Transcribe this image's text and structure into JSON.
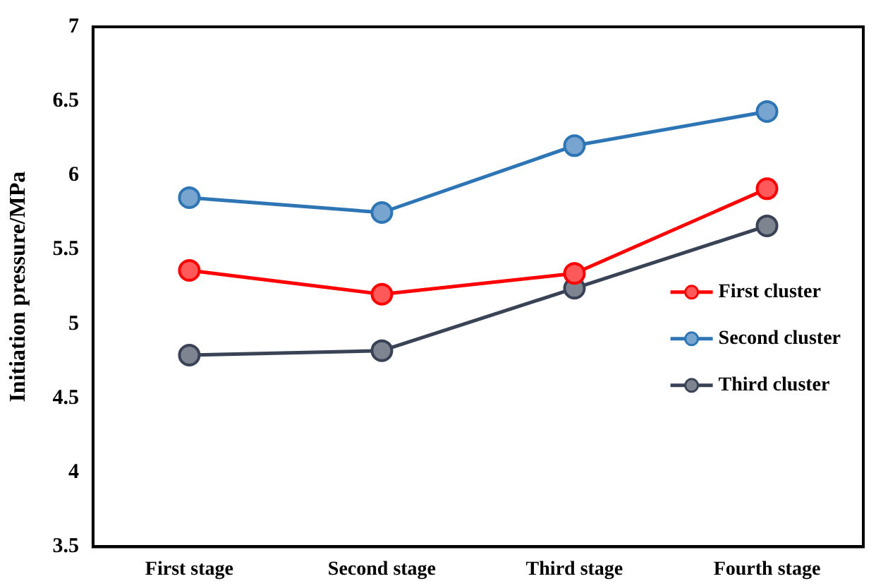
{
  "chart_data": {
    "type": "line",
    "ylabel": "Initiation pressure/MPa",
    "categories": [
      "First stage",
      "Second stage",
      "Third stage",
      "Fourth stage"
    ],
    "series": [
      {
        "name": "First cluster",
        "color": "#ff0000",
        "values": [
          5.36,
          5.2,
          5.34,
          5.91
        ]
      },
      {
        "name": "Second cluster",
        "color": "#2e75b6",
        "values": [
          5.85,
          5.75,
          6.2,
          6.43
        ]
      },
      {
        "name": "Third cluster",
        "color": "#3a4256",
        "values": [
          4.79,
          4.82,
          5.24,
          5.66
        ]
      }
    ],
    "ylim": [
      3.5,
      7
    ],
    "yticks": [
      3.5,
      4,
      4.5,
      5,
      5.5,
      6,
      6.5,
      7
    ],
    "grid": false,
    "legend": "right",
    "marker": "circle",
    "line_style": "solid"
  }
}
